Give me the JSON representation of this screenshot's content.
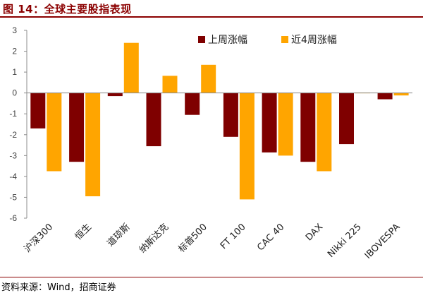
{
  "header": {
    "title": "图 14：全球主要股指表现"
  },
  "footer": {
    "source": "资料来源：Wind，招商证券"
  },
  "chart_data": {
    "type": "bar",
    "categories": [
      "沪深300",
      "恒生",
      "道琼斯",
      "纳斯达克",
      "标普500",
      "FT 100",
      "CAC 40",
      "DAX",
      "Nikki 225",
      "IBOVESPA"
    ],
    "series": [
      {
        "name": "上周涨幅",
        "color": "#7f0000",
        "values": [
          -1.7,
          -3.3,
          -0.15,
          -2.55,
          -1.05,
          -2.1,
          -2.85,
          -3.3,
          -2.45,
          -0.3
        ]
      },
      {
        "name": "近4周涨幅",
        "color": "#ffa500",
        "values": [
          -3.75,
          -4.95,
          2.4,
          0.82,
          1.35,
          -5.1,
          -3.0,
          -3.75,
          0.02,
          -0.12
        ]
      }
    ],
    "ylim": [
      -6,
      3
    ],
    "yticks": [
      3,
      2,
      1,
      0,
      -1,
      -2,
      -3,
      -4,
      -5,
      -6
    ],
    "legend_position": "top-right"
  }
}
